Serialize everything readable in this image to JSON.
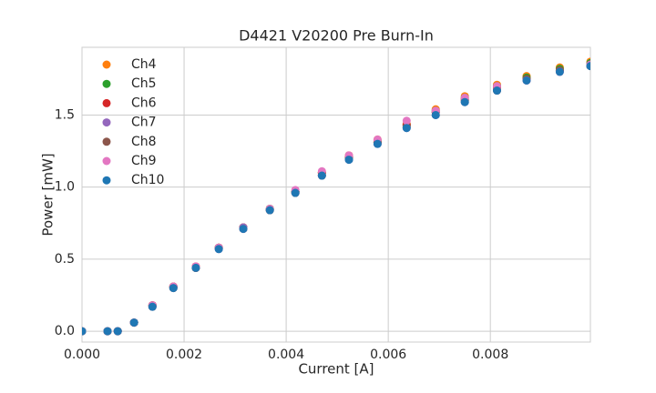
{
  "chart_data": {
    "type": "scatter",
    "title": "D4421 V20200 Pre Burn-In",
    "x_label": "Current [A]",
    "y_label": "Power [mW]",
    "x": [
      0,
      0.0005,
      0.0007,
      0.00102,
      0.00138,
      0.00179,
      0.00223,
      0.00268,
      0.00316,
      0.00368,
      0.00418,
      0.0047,
      0.00523,
      0.00579,
      0.00636,
      0.00693,
      0.0075,
      0.00813,
      0.00871,
      0.00936,
      0.00996
    ],
    "series": [
      {
        "name": "Ch4",
        "color": "#ff7f0e",
        "values": [
          0,
          0,
          0,
          0.06,
          0.18,
          0.31,
          0.45,
          0.58,
          0.72,
          0.85,
          0.97,
          1.1,
          1.22,
          1.33,
          1.44,
          1.54,
          1.63,
          1.71,
          1.77,
          1.83,
          1.87
        ]
      },
      {
        "name": "Ch5",
        "color": "#2ca02c",
        "values": [
          0,
          0,
          0,
          0.06,
          0.18,
          0.31,
          0.44,
          0.58,
          0.72,
          0.85,
          0.97,
          1.1,
          1.21,
          1.32,
          1.43,
          1.53,
          1.62,
          1.7,
          1.76,
          1.82,
          1.86
        ]
      },
      {
        "name": "Ch6",
        "color": "#d62728",
        "values": [
          0,
          0,
          0,
          0.06,
          0.18,
          0.31,
          0.44,
          0.58,
          0.72,
          0.84,
          0.97,
          1.1,
          1.21,
          1.31,
          1.43,
          1.52,
          1.61,
          1.69,
          1.75,
          1.81,
          1.85
        ]
      },
      {
        "name": "Ch7",
        "color": "#9467bd",
        "values": [
          0,
          0,
          0,
          0.06,
          0.17,
          0.3,
          0.44,
          0.57,
          0.72,
          0.84,
          0.96,
          1.08,
          1.19,
          1.3,
          1.41,
          1.5,
          1.59,
          1.67,
          1.74,
          1.8,
          1.84
        ]
      },
      {
        "name": "Ch8",
        "color": "#8c564b",
        "values": [
          0,
          0,
          0,
          0.06,
          0.17,
          0.3,
          0.44,
          0.58,
          0.71,
          0.84,
          0.96,
          1.08,
          1.2,
          1.31,
          1.42,
          1.52,
          1.6,
          1.67,
          1.75,
          1.81,
          1.84
        ]
      },
      {
        "name": "Ch9",
        "color": "#e377c2",
        "values": [
          0,
          0,
          0,
          0.06,
          0.18,
          0.31,
          0.45,
          0.58,
          0.71,
          0.85,
          0.98,
          1.11,
          1.22,
          1.33,
          1.46,
          1.53,
          1.62,
          1.7,
          1.74,
          1.8,
          1.85
        ]
      },
      {
        "name": "Ch10",
        "color": "#1f77b4",
        "values": [
          0,
          0,
          0,
          0.06,
          0.17,
          0.3,
          0.44,
          0.57,
          0.71,
          0.84,
          0.96,
          1.08,
          1.19,
          1.3,
          1.41,
          1.5,
          1.59,
          1.67,
          1.74,
          1.8,
          1.84
        ]
      }
    ],
    "xlim": [
      0,
      0.00996
    ],
    "ylim": [
      -0.075,
      1.97
    ],
    "xticks": [
      {
        "value": 0,
        "label": "0.000"
      },
      {
        "value": 0.002,
        "label": "0.002"
      },
      {
        "value": 0.004,
        "label": "0.004"
      },
      {
        "value": 0.006,
        "label": "0.006"
      },
      {
        "value": 0.008,
        "label": "0.008"
      }
    ],
    "yticks": [
      {
        "value": 0,
        "label": "0.0"
      },
      {
        "value": 0.5,
        "label": "0.5"
      },
      {
        "value": 1,
        "label": "1.0"
      },
      {
        "value": 1.5,
        "label": "1.5"
      }
    ],
    "grid": true,
    "legend": "upper left"
  }
}
